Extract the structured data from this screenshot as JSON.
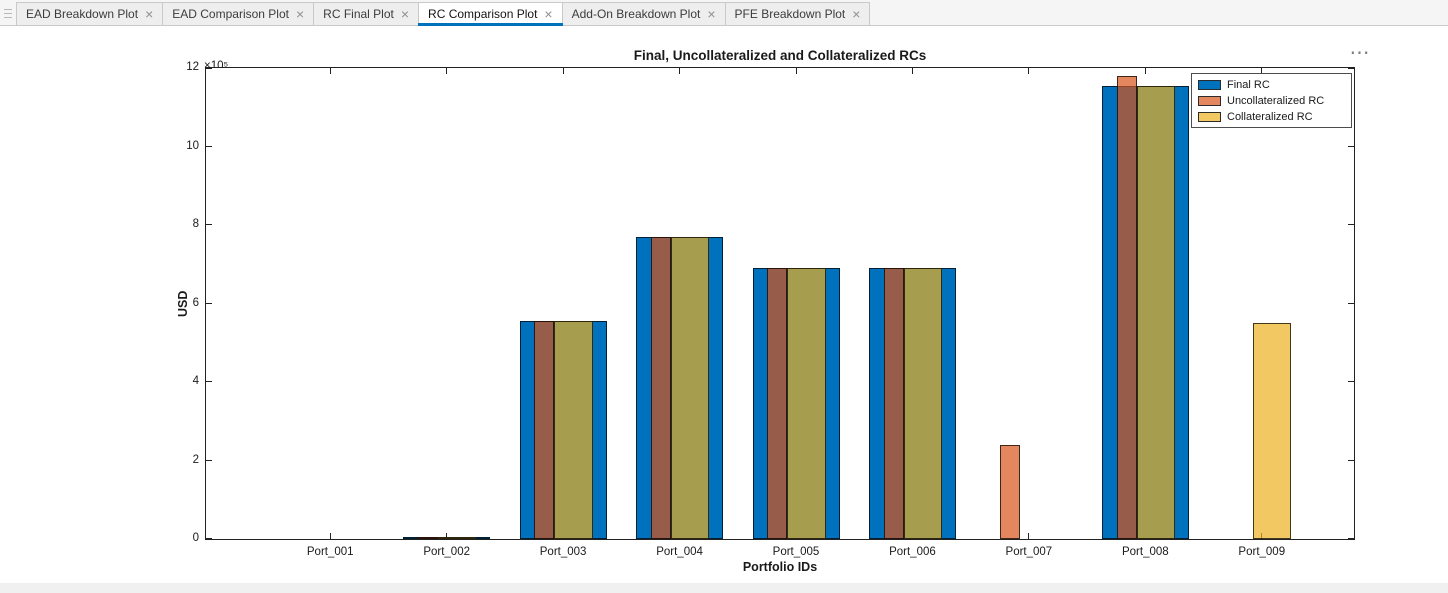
{
  "tab_bar": {
    "close_glyph": "×",
    "tabs": [
      {
        "label": "EAD Breakdown Plot",
        "active": false
      },
      {
        "label": "EAD Comparison Plot",
        "active": false
      },
      {
        "label": "RC Final Plot",
        "active": false
      },
      {
        "label": "RC Comparison Plot",
        "active": true
      },
      {
        "label": "Add-On Breakdown Plot",
        "active": false
      },
      {
        "label": "PFE Breakdown Plot",
        "active": false
      }
    ]
  },
  "figure": {
    "axes_toolbar_ellipsis": "⋯"
  },
  "chart_data": {
    "type": "bar",
    "bar_layout": "overlaid-translucent",
    "title": "Final, Uncollateralized and Collateralized RCs",
    "xlabel": "Portfolio IDs",
    "ylabel": "USD",
    "y_axis_multiplier_label": "×10⁵",
    "y_values_scale": 100000,
    "ylim": [
      0,
      12
    ],
    "yticks": [
      0,
      2,
      4,
      6,
      8,
      10,
      12
    ],
    "grid": false,
    "categories": [
      "Port_001",
      "Port_002",
      "Port_003",
      "Port_004",
      "Port_005",
      "Port_006",
      "Port_007",
      "Port_008",
      "Port_009"
    ],
    "series": [
      {
        "name": "Final RC",
        "color": "#0072BD",
        "values": [
          0,
          0.04,
          5.55,
          7.7,
          6.9,
          6.9,
          0,
          11.55,
          0
        ]
      },
      {
        "name": "Uncollateralized RC",
        "color": "#D95319",
        "values": [
          0,
          0.04,
          5.55,
          7.7,
          6.9,
          6.9,
          2.4,
          11.8,
          0
        ]
      },
      {
        "name": "Collateralized RC",
        "color": "#EDB120",
        "values": [
          0,
          0.04,
          5.55,
          7.7,
          6.9,
          6.9,
          0,
          11.55,
          5.5
        ]
      }
    ],
    "legend": {
      "position": "northeast",
      "entries": [
        "Final RC",
        "Uncollateralized RC",
        "Collateralized RC"
      ]
    }
  }
}
